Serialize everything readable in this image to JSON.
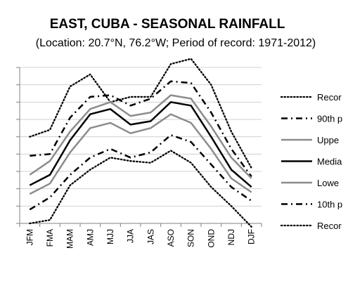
{
  "chart_data": {
    "type": "line",
    "title": "EAST, CUBA - SEASONAL RAINFALL",
    "subtitle": "(Location: 20.7°N, 76.2°W; Period of record: 1971-2012)",
    "xlabel": "",
    "ylabel": "",
    "categories": [
      "JFM",
      "FMA",
      "MAM",
      "AMJ",
      "MJJ",
      "JJA",
      "JAS",
      "ASO",
      "SON",
      "OND",
      "NDJ",
      "DJF"
    ],
    "ylim": [
      0,
      9
    ],
    "y_tick_labels_visible": false,
    "grid": true,
    "legend_position": "right",
    "series": [
      {
        "name": "Recor",
        "style": "dotted",
        "color": "#000000",
        "values": [
          5.0,
          5.4,
          7.9,
          8.6,
          7.0,
          7.3,
          7.3,
          9.2,
          9.5,
          8.0,
          5.3,
          3.2
        ]
      },
      {
        "name": "90th p",
        "style": "dashdot",
        "color": "#000000",
        "values": [
          3.9,
          4.0,
          6.1,
          7.3,
          7.4,
          6.8,
          7.2,
          8.2,
          8.1,
          6.4,
          4.3,
          2.7
        ]
      },
      {
        "name": "Uppe",
        "style": "solid",
        "color": "#8c8c8c",
        "values": [
          2.8,
          3.6,
          5.3,
          6.6,
          7.0,
          6.2,
          6.4,
          7.4,
          7.2,
          5.6,
          3.8,
          2.6
        ]
      },
      {
        "name": "Media",
        "style": "solid",
        "color": "#000000",
        "values": [
          2.2,
          2.8,
          4.8,
          6.3,
          6.6,
          5.7,
          5.9,
          7.0,
          6.8,
          5.0,
          3.1,
          2.1
        ]
      },
      {
        "name": "Lowe",
        "style": "solid",
        "color": "#8c8c8c",
        "values": [
          1.7,
          2.3,
          4.1,
          5.5,
          5.8,
          5.2,
          5.5,
          6.3,
          5.8,
          4.3,
          2.6,
          1.8
        ]
      },
      {
        "name": "10th p",
        "style": "dashdot",
        "color": "#000000",
        "values": [
          0.8,
          1.5,
          2.8,
          3.8,
          4.3,
          3.8,
          4.1,
          5.1,
          4.7,
          3.4,
          2.1,
          1.3
        ]
      },
      {
        "name": "Recor",
        "style": "dotted",
        "color": "#000000",
        "values": [
          0.0,
          0.2,
          2.2,
          3.1,
          3.8,
          3.6,
          3.5,
          4.2,
          3.5,
          2.1,
          1.0,
          -0.2
        ]
      }
    ]
  }
}
